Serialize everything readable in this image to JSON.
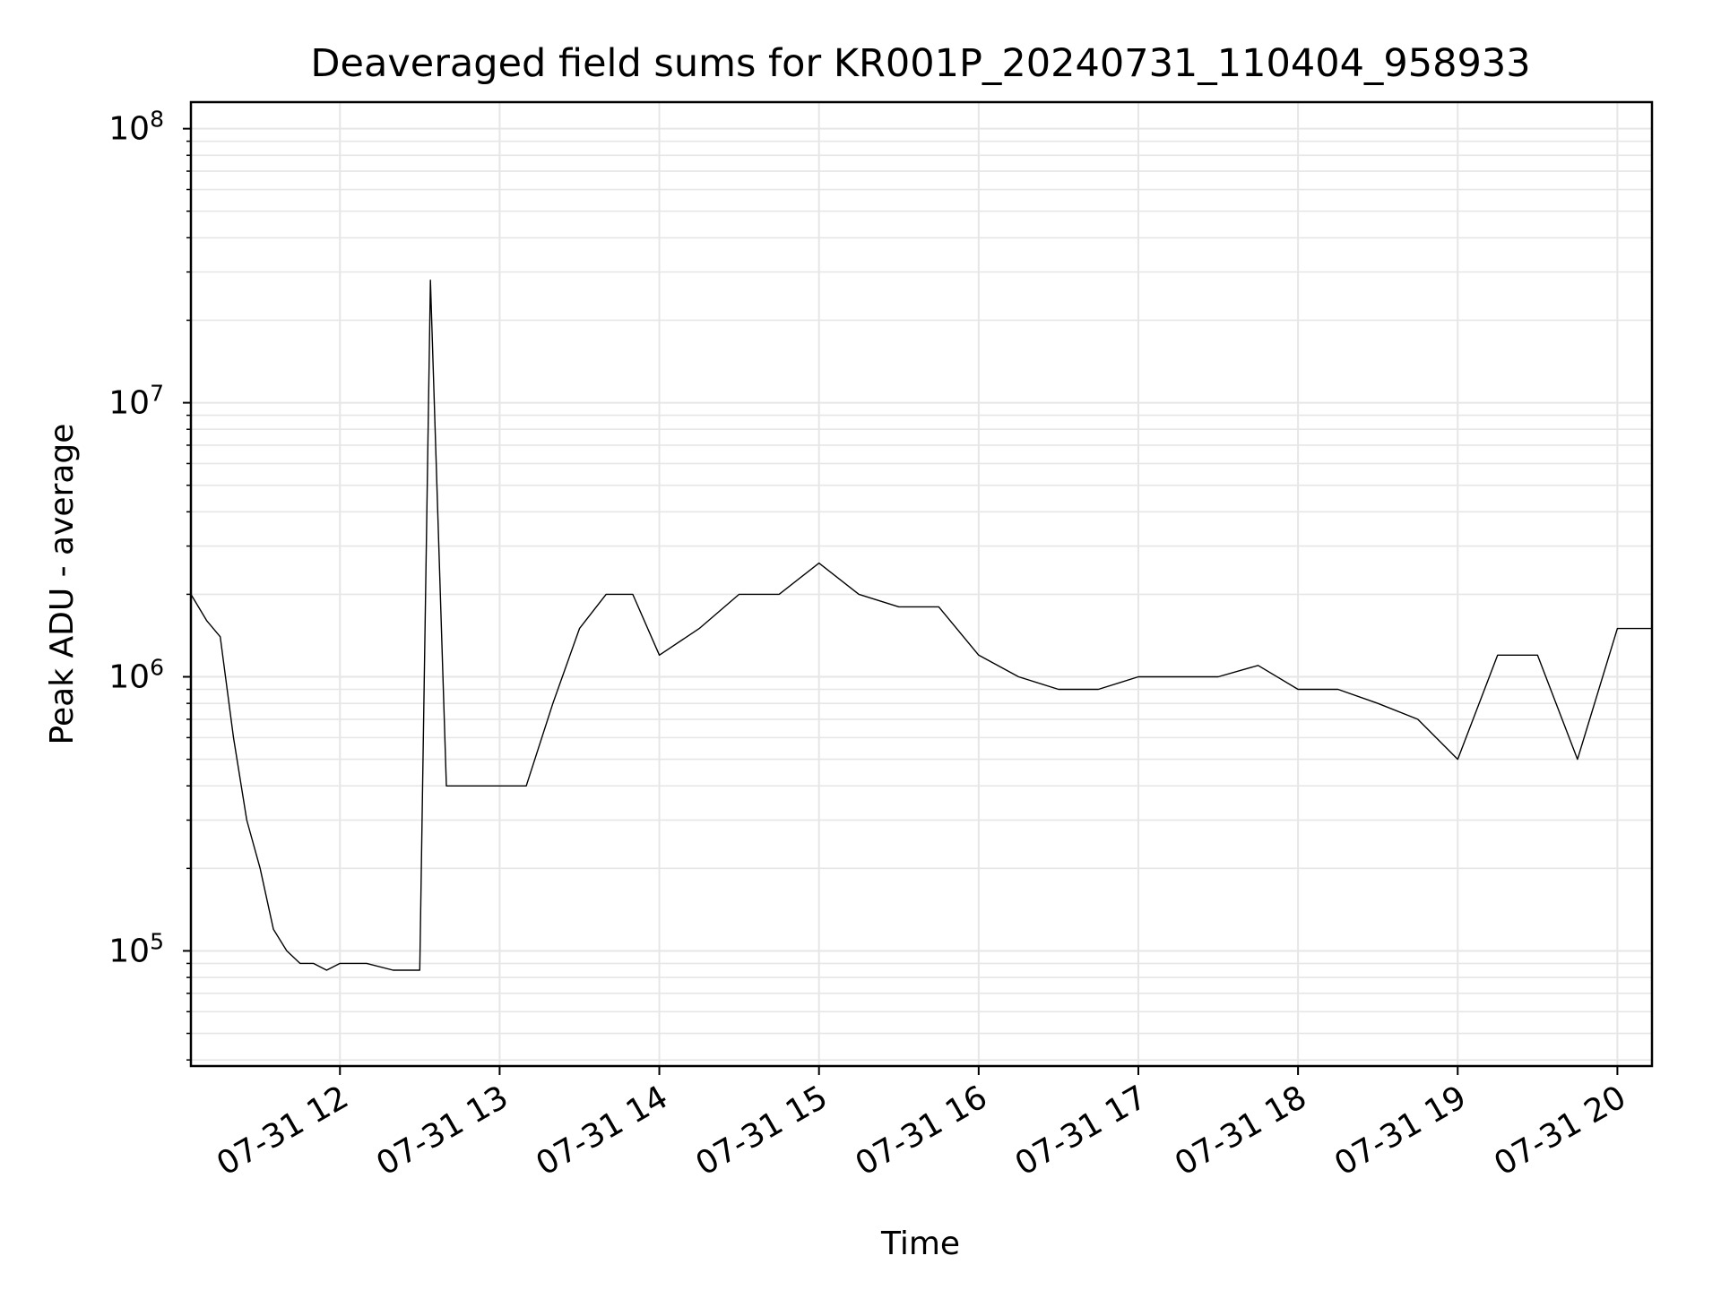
{
  "chart_data": {
    "type": "line",
    "title": "Deaveraged field sums for KR001P_20240731_110404_958933",
    "xlabel": "Time",
    "ylabel": "Peak ADU - average",
    "yscale": "log",
    "grid": true,
    "grid_minor": true,
    "legend": "none",
    "x_range": [
      "2024-07-31 11:04",
      "2024-07-31 20:13"
    ],
    "ylim": [
      38000,
      125000000
    ],
    "x_ticks": [
      "07-31 12",
      "07-31 13",
      "07-31 14",
      "07-31 15",
      "07-31 16",
      "07-31 17",
      "07-31 18",
      "07-31 19",
      "07-31 20"
    ],
    "y_ticks": [
      {
        "value": 100000,
        "base": "10",
        "exp": "5"
      },
      {
        "value": 1000000,
        "base": "10",
        "exp": "6"
      },
      {
        "value": 10000000,
        "base": "10",
        "exp": "7"
      },
      {
        "value": 100000000,
        "base": "10",
        "exp": "8"
      }
    ],
    "line_color": "#000000",
    "series": [
      {
        "x": [
          "2024-07-31 11:04",
          "2024-07-31 11:10",
          "2024-07-31 11:15",
          "2024-07-31 11:20",
          "2024-07-31 11:25",
          "2024-07-31 11:30",
          "2024-07-31 11:35",
          "2024-07-31 11:40",
          "2024-07-31 11:45",
          "2024-07-31 11:50",
          "2024-07-31 11:55",
          "2024-07-31 12:00",
          "2024-07-31 12:10",
          "2024-07-31 12:20",
          "2024-07-31 12:30",
          "2024-07-31 12:34",
          "2024-07-31 12:40",
          "2024-07-31 12:50",
          "2024-07-31 13:00",
          "2024-07-31 13:10",
          "2024-07-31 13:20",
          "2024-07-31 13:30",
          "2024-07-31 13:40",
          "2024-07-31 13:50",
          "2024-07-31 14:00",
          "2024-07-31 14:15",
          "2024-07-31 14:30",
          "2024-07-31 14:45",
          "2024-07-31 15:00",
          "2024-07-31 15:15",
          "2024-07-31 15:30",
          "2024-07-31 15:45",
          "2024-07-31 16:00",
          "2024-07-31 16:15",
          "2024-07-31 16:30",
          "2024-07-31 16:45",
          "2024-07-31 17:00",
          "2024-07-31 17:15",
          "2024-07-31 17:30",
          "2024-07-31 17:45",
          "2024-07-31 18:00",
          "2024-07-31 18:15",
          "2024-07-31 18:30",
          "2024-07-31 18:45",
          "2024-07-31 19:00",
          "2024-07-31 19:15",
          "2024-07-31 19:30",
          "2024-07-31 19:45",
          "2024-07-31 20:00",
          "2024-07-31 20:13"
        ],
        "values": [
          2000000,
          1600000,
          1400000,
          600000,
          300000,
          200000,
          120000,
          100000,
          90000,
          90000,
          85000,
          90000,
          90000,
          85000,
          85000,
          28000000,
          400000,
          400000,
          400000,
          400000,
          800000,
          1500000,
          2000000,
          2000000,
          1200000,
          1500000,
          2000000,
          2000000,
          2600000,
          2000000,
          1800000,
          1800000,
          1200000,
          1000000,
          900000,
          900000,
          1000000,
          1000000,
          1000000,
          1100000,
          900000,
          900000,
          800000,
          700000,
          500000,
          1200000,
          1200000,
          500000,
          1500000,
          1500000
        ]
      }
    ]
  }
}
